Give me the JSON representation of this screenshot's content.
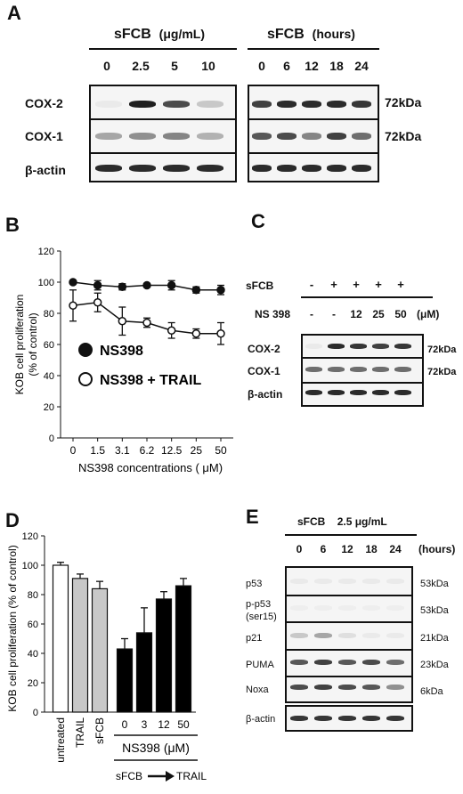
{
  "panel_a": {
    "letter": "A",
    "left_title": "sFCB",
    "left_unit": "(μg/mL)",
    "left_lanes": [
      "0",
      "2.5",
      "5",
      "10"
    ],
    "right_title": "sFCB",
    "right_unit": "(hours)",
    "right_lanes": [
      "0",
      "6",
      "12",
      "18",
      "24"
    ],
    "rows": [
      {
        "label": "COX-2",
        "size": "72kDa"
      },
      {
        "label": "COX-1",
        "size": "72kDa"
      },
      {
        "label": "β-actin",
        "size": ""
      }
    ],
    "band_intensity": {
      "left": {
        "cox2": [
          0.05,
          0.95,
          0.75,
          0.2
        ],
        "cox1": [
          0.35,
          0.45,
          0.5,
          0.3
        ],
        "actin": [
          0.9,
          0.9,
          0.9,
          0.9
        ]
      },
      "right": {
        "cox2": [
          0.8,
          0.9,
          0.9,
          0.9,
          0.85
        ],
        "cox1": [
          0.7,
          0.75,
          0.5,
          0.8,
          0.6
        ],
        "actin": [
          0.9,
          0.9,
          0.9,
          0.9,
          0.9
        ]
      }
    }
  },
  "panel_b": {
    "letter": "B",
    "chart_data": {
      "type": "line",
      "ylabel": "KOB cell proliferation (% of control)",
      "ylabel_line1": "KOB cell proliferation",
      "ylabel_line2": "(% of control)",
      "xlabel": "NS398 concentrations ( μM)",
      "ylim": [
        0,
        120
      ],
      "yticks": [
        "0",
        "20",
        "40",
        "60",
        "80",
        "100",
        "120"
      ],
      "categories": [
        "0",
        "1.5",
        "3.1",
        "6.2",
        "12.5",
        "25",
        "50"
      ],
      "series": [
        {
          "name": "NS398",
          "marker": "filled-circle",
          "values": [
            100,
            98,
            97,
            98,
            98,
            95,
            95
          ],
          "errors": [
            1,
            3,
            2,
            1,
            3,
            2,
            3
          ]
        },
        {
          "name": "NS398 + TRAIL",
          "marker": "open-circle",
          "values": [
            85,
            87,
            75,
            74,
            69,
            67,
            67
          ],
          "errors": [
            10,
            6,
            9,
            3,
            5,
            3,
            7
          ]
        }
      ]
    }
  },
  "panel_c": {
    "letter": "C",
    "sfcb_label": "sFCB",
    "sfcb_signs": [
      "-",
      "+",
      "+",
      "+",
      "+"
    ],
    "ns_label": "NS 398",
    "ns_values": [
      "-",
      "-",
      "12",
      "25",
      "50"
    ],
    "ns_unit": "(μM)",
    "rows": [
      {
        "label": "COX-2",
        "size": "72kDa"
      },
      {
        "label": "COX-1",
        "size": "72kDa"
      },
      {
        "label": "β-actin",
        "size": ""
      }
    ],
    "band_intensity": {
      "cox2": [
        0.05,
        0.9,
        0.85,
        0.8,
        0.85
      ],
      "cox1": [
        0.6,
        0.6,
        0.6,
        0.6,
        0.6
      ],
      "actin": [
        0.9,
        0.9,
        0.9,
        0.9,
        0.9
      ]
    }
  },
  "panel_d": {
    "letter": "D",
    "chart_data": {
      "type": "bar",
      "ylabel": "KOB  cell proliferation (% of control)",
      "ylim": [
        0,
        120
      ],
      "yticks": [
        "0",
        "20",
        "40",
        "60",
        "80",
        "100",
        "120"
      ],
      "categories": [
        "untreated",
        "TRAIL",
        "sFCB",
        "0",
        "3",
        "12",
        "50"
      ],
      "values": [
        100,
        91,
        84,
        43,
        54,
        77,
        86
      ],
      "errors": [
        2,
        3,
        5,
        7,
        17,
        5,
        5
      ],
      "bar_fills": [
        "#ffffff",
        "#c8c8c8",
        "#c8c8c8",
        "#000000",
        "#000000",
        "#000000",
        "#000000"
      ],
      "group_label": "NS398 (μM)",
      "bottom_label_left": "sFCB",
      "bottom_label_right": "TRAIL"
    }
  },
  "panel_e": {
    "letter": "E",
    "title": "sFCB",
    "dose": "2.5  μg/mL",
    "lanes": [
      "0",
      "6",
      "12",
      "18",
      "24"
    ],
    "unit": "(hours)",
    "rows": [
      {
        "label": "p53",
        "size": "53kDa"
      },
      {
        "label": "p-p53\n(ser15)",
        "size": "53kDa"
      },
      {
        "label": "p21",
        "size": "21kDa"
      },
      {
        "label": "PUMA",
        "size": "23kDa"
      },
      {
        "label": "Noxa",
        "size": "6kDa"
      },
      {
        "label": "β-actin",
        "size": ""
      }
    ],
    "band_intensity": {
      "p53": [
        0.05,
        0.05,
        0.05,
        0.05,
        0.05
      ],
      "pp53": [
        0.03,
        0.03,
        0.03,
        0.03,
        0.03
      ],
      "p21": [
        0.2,
        0.35,
        0.1,
        0.05,
        0.05
      ],
      "puma": [
        0.7,
        0.8,
        0.7,
        0.75,
        0.6
      ],
      "noxa": [
        0.75,
        0.8,
        0.75,
        0.7,
        0.45
      ],
      "actin": [
        0.85,
        0.85,
        0.85,
        0.85,
        0.85
      ]
    }
  }
}
